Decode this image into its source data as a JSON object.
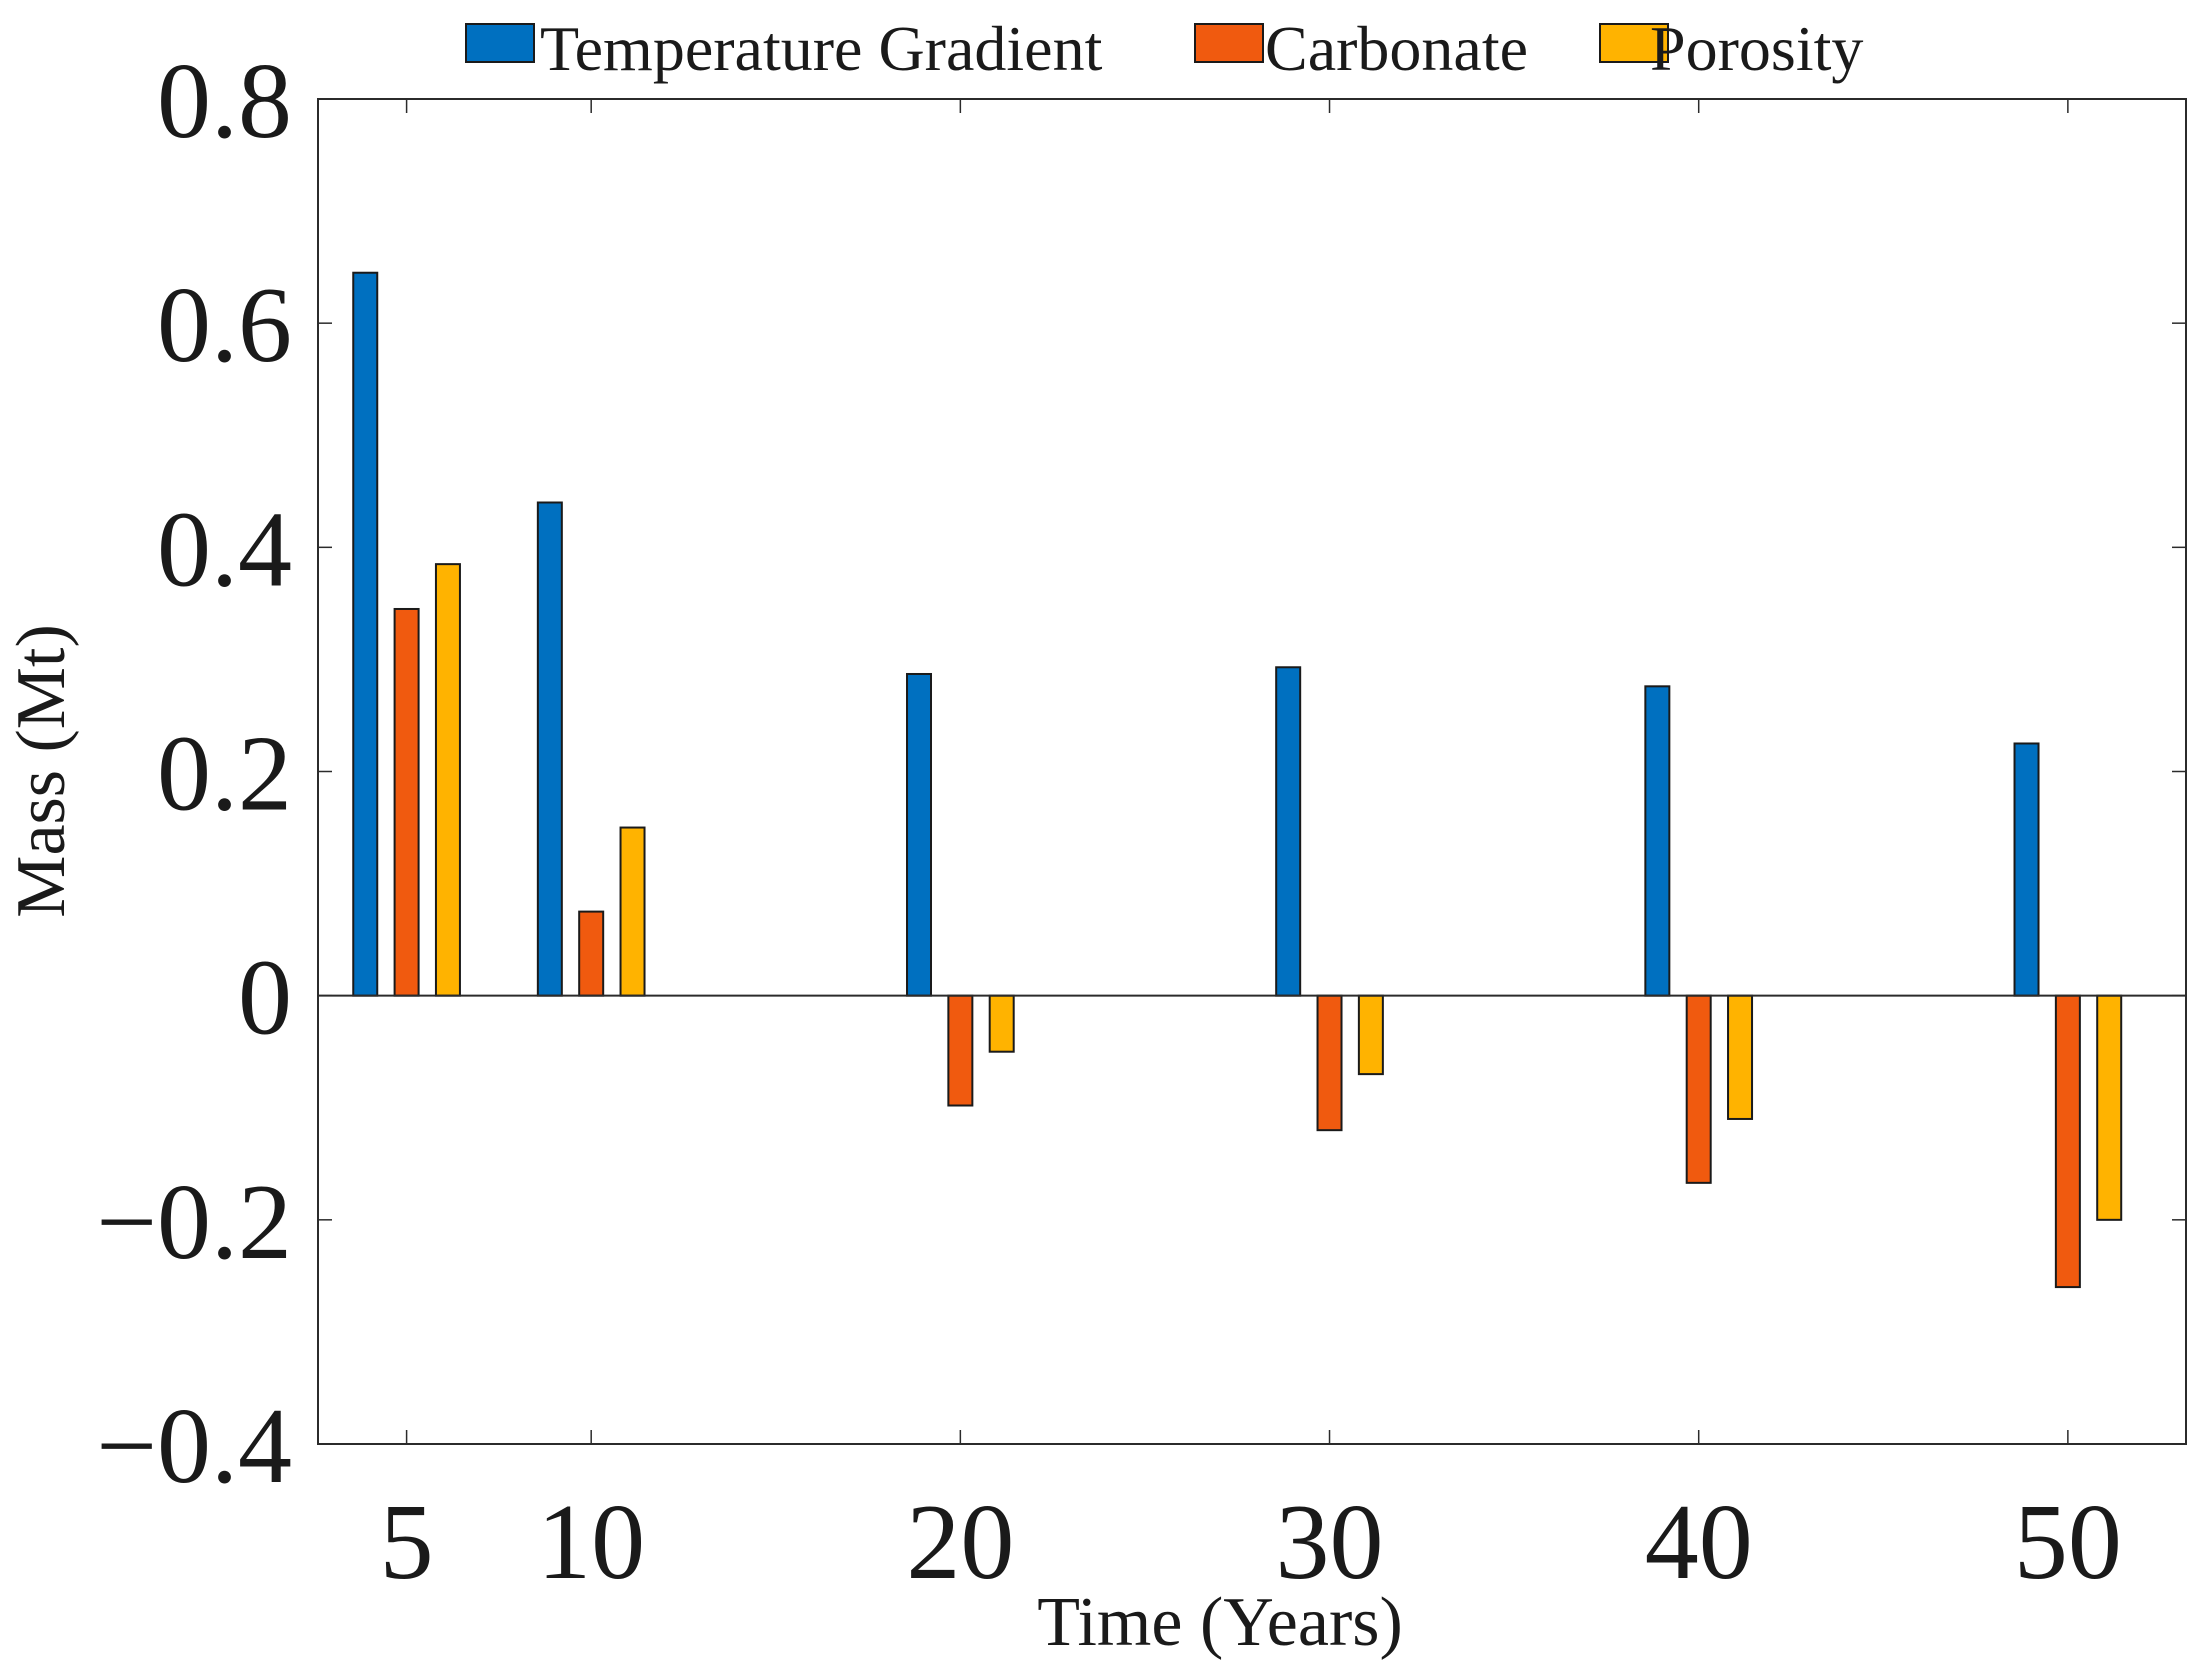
{
  "chart_data": {
    "type": "bar",
    "title": "",
    "xlabel": "Time (Years)",
    "ylabel": "Mass (Mt)",
    "categories": [
      "5",
      "10",
      "20",
      "30",
      "40",
      "50"
    ],
    "x": [
      5,
      10,
      20,
      30,
      40,
      50
    ],
    "xlim": [
      2.6,
      53.2
    ],
    "ylim": [
      -0.4,
      0.8
    ],
    "yticks": [
      -0.4,
      -0.2,
      0,
      0.2,
      0.4,
      0.6,
      0.8
    ],
    "ytick_labels": [
      "−0.4",
      "−0.2",
      "0",
      "0.2",
      "0.4",
      "0.6",
      "0.8"
    ],
    "grid": false,
    "legend_position": "top",
    "series": [
      {
        "name": "Temperature Gradient",
        "color": "#0070c0",
        "values": [
          0.645,
          0.44,
          0.287,
          0.293,
          0.276,
          0.225
        ]
      },
      {
        "name": "Carbonate",
        "color": "#f05a0f",
        "values": [
          0.345,
          0.075,
          -0.098,
          -0.12,
          -0.167,
          -0.26
        ]
      },
      {
        "name": "Porosity",
        "color": "#ffb300",
        "values": [
          0.385,
          0.15,
          -0.05,
          -0.07,
          -0.11,
          -0.2
        ]
      }
    ]
  }
}
